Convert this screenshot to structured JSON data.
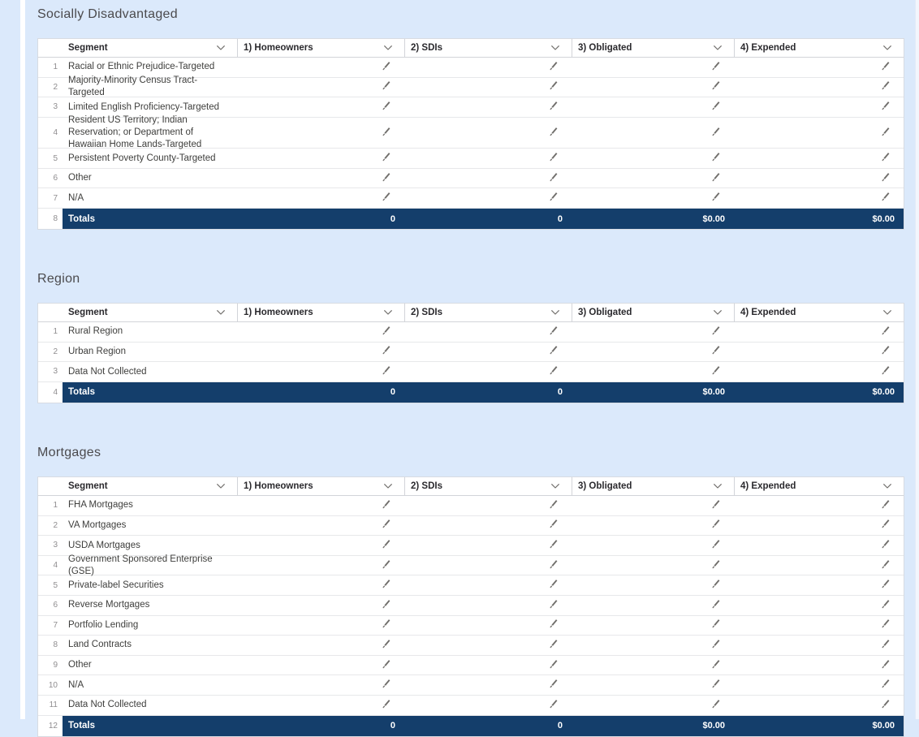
{
  "page": {
    "background_color": "#dbe9fb",
    "table_background": "#ffffff",
    "totals_bar_color": "#143e6b",
    "totals_text_color": "#ffffff",
    "icon_color": "#706e6b"
  },
  "icons": {
    "header_sort": "chevron-down-icon",
    "cell_edit": "pencil-icon"
  },
  "tables": [
    {
      "title": "Socially Disadvantaged",
      "headers": [
        "Segment",
        "1) Homeowners",
        "2) SDIs",
        "3) Obligated",
        "4) Expended"
      ],
      "rows": [
        {
          "num": "1",
          "segment": "Racial or Ethnic Prejudice-Targeted"
        },
        {
          "num": "2",
          "segment": "Majority-Minority Census Tract-Targeted"
        },
        {
          "num": "3",
          "segment": "Limited English Proficiency-Targeted"
        },
        {
          "num": "4",
          "segment": "Resident US Territory; Indian Reservation; or Department of Hawaiian Home Lands-Targeted"
        },
        {
          "num": "5",
          "segment": "Persistent Poverty County-Targeted"
        },
        {
          "num": "6",
          "segment": "Other"
        },
        {
          "num": "7",
          "segment": "N/A"
        }
      ],
      "totals": {
        "num": "8",
        "label": "Totals",
        "values": [
          "0",
          "0",
          "$0.00",
          "$0.00"
        ]
      }
    },
    {
      "title": "Region",
      "headers": [
        "Segment",
        "1) Homeowners",
        "2) SDIs",
        "3) Obligated",
        "4) Expended"
      ],
      "rows": [
        {
          "num": "1",
          "segment": "Rural Region"
        },
        {
          "num": "2",
          "segment": "Urban Region"
        },
        {
          "num": "3",
          "segment": "Data Not Collected"
        }
      ],
      "totals": {
        "num": "4",
        "label": "Totals",
        "values": [
          "0",
          "0",
          "$0.00",
          "$0.00"
        ]
      }
    },
    {
      "title": "Mortgages",
      "headers": [
        "Segment",
        "1) Homeowners",
        "2) SDIs",
        "3) Obligated",
        "4) Expended"
      ],
      "rows": [
        {
          "num": "1",
          "segment": "FHA Mortgages"
        },
        {
          "num": "2",
          "segment": "VA Mortgages"
        },
        {
          "num": "3",
          "segment": "USDA Mortgages"
        },
        {
          "num": "4",
          "segment": "Government Sponsored Enterprise (GSE)"
        },
        {
          "num": "5",
          "segment": "Private-label Securities"
        },
        {
          "num": "6",
          "segment": "Reverse Mortgages"
        },
        {
          "num": "7",
          "segment": "Portfolio Lending"
        },
        {
          "num": "8",
          "segment": "Land Contracts"
        },
        {
          "num": "9",
          "segment": "Other"
        },
        {
          "num": "10",
          "segment": "N/A"
        },
        {
          "num": "11",
          "segment": "Data Not Collected"
        }
      ],
      "totals": {
        "num": "12",
        "label": "Totals",
        "values": [
          "0",
          "0",
          "$0.00",
          "$0.00"
        ]
      }
    }
  ]
}
